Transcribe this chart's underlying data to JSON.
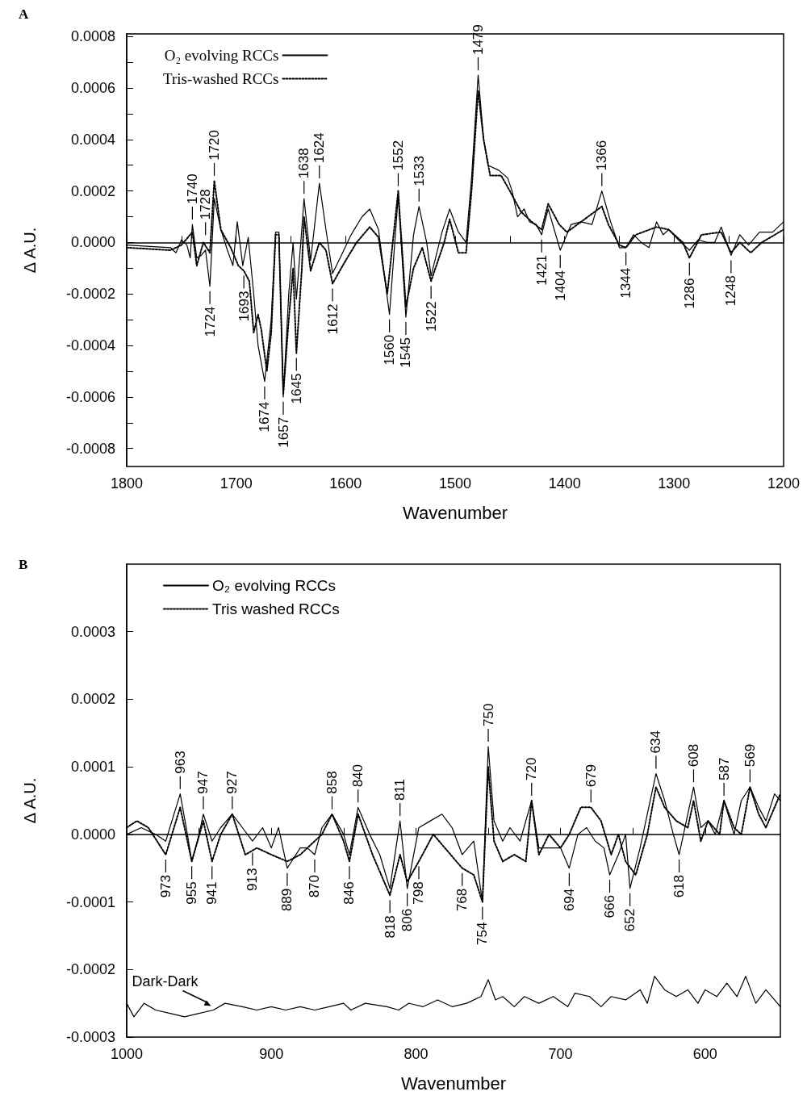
{
  "chart_data": [
    {
      "type": "line",
      "title": "A",
      "xlabel": "Wavenumber",
      "ylabel": "Δ A.U.",
      "legend": "top left",
      "xlim": [
        1800,
        1200
      ],
      "xticks": [
        1800,
        {
          "value": 1750,
          "label": null
        },
        1700,
        {
          "value": 1650,
          "label": null
        },
        1600,
        {
          "value": 1550,
          "label": null
        },
        1500,
        {
          "value": 1450,
          "label": null
        },
        1400,
        {
          "value": 1350,
          "label": null
        },
        1300,
        {
          "value": 1250,
          "label": null
        },
        1200
      ],
      "ylim": [
        -0.00087,
        0.00081
      ],
      "yticks": [
        -0.0008,
        {
          "value": -0.0007,
          "label": null
        },
        -0.0006,
        {
          "value": -0.0005,
          "label": null
        },
        -0.0004,
        {
          "value": -0.0003,
          "label": null
        },
        -0.0002,
        {
          "value": -0.0001,
          "label": null
        },
        {
          "value": 0,
          "label": "0.0000"
        },
        {
          "value": 0.0001,
          "label": null
        },
        0.0002,
        {
          "value": 0.0003,
          "label": null
        },
        0.0004,
        {
          "value": 0.0005,
          "label": null
        },
        0.0006,
        {
          "value": 0.0007,
          "label": null
        },
        0.0008
      ],
      "series": [
        {
          "name": "O₂ evolving RCCs",
          "color": "#000000",
          "line_style": "solid",
          "x": [
            1800,
            1760,
            1755,
            1750,
            1745,
            1742,
            1740,
            1736,
            1732,
            1728,
            1724,
            1720,
            1714,
            1708,
            1703,
            1699,
            1694,
            1689,
            1684,
            1680,
            1674,
            1668,
            1664,
            1661,
            1657,
            1652,
            1648,
            1645,
            1641,
            1638,
            1632,
            1624,
            1618,
            1612,
            1605,
            1595,
            1585,
            1578,
            1570,
            1560,
            1552,
            1545,
            1538,
            1533,
            1526,
            1522,
            1512,
            1505,
            1497,
            1490,
            1485,
            1479,
            1474,
            1470,
            1460,
            1452,
            1448,
            1443,
            1437,
            1432,
            1426,
            1421,
            1415,
            1404,
            1394,
            1385,
            1375,
            1366,
            1358,
            1350,
            1344,
            1337,
            1330,
            1323,
            1316,
            1310,
            1305,
            1296,
            1286,
            1278,
            1270,
            1263,
            1257,
            1248,
            1240,
            1232,
            1222,
            1210,
            1200
          ],
          "values": [
            -1e-05,
            -2e-05,
            -4e-05,
            1e-05,
            -1e-05,
            -6e-05,
            7e-05,
            -6e-05,
            -5e-05,
            -3e-05,
            -0.00017,
            0.00017,
            5e-05,
            -3e-05,
            -9e-05,
            8e-05,
            -9e-05,
            2e-05,
            -0.0002,
            -0.0004,
            -0.00054,
            -0.0003,
            4e-05,
            4e-05,
            -0.0006,
            -0.0002,
            0,
            -0.00022,
            0,
            0.00017,
            -7e-05,
            0.00023,
            5e-05,
            -0.00012,
            -6e-05,
            3e-05,
            0.0001,
            0.00013,
            5e-05,
            -0.00028,
            0.00018,
            -0.00029,
            3e-05,
            0.00014,
            0,
            -0.00013,
            4e-05,
            0.00013,
            4e-05,
            0,
            0.00025,
            0.00065,
            0.0004,
            0.0003,
            0.00028,
            0.00025,
            0.0002,
            0.0001,
            0.00013,
            8e-05,
            7e-05,
            3e-05,
            0.00013,
            -3e-05,
            7e-05,
            8e-05,
            7e-05,
            0.0002,
            8e-05,
            -2e-05,
            -2e-05,
            3e-05,
            0,
            -2e-05,
            8e-05,
            3e-05,
            5e-05,
            1e-05,
            -3e-05,
            1e-05,
            0,
            0,
            6e-05,
            -5e-05,
            3e-05,
            -1e-05,
            4e-05,
            4e-05,
            8e-05
          ]
        },
        {
          "name": "Tris-washed RCCs",
          "color": "#000000",
          "line_style": "dotted",
          "x": [
            1800,
            1760,
            1750,
            1740,
            1736,
            1730,
            1724,
            1720,
            1714,
            1705,
            1698,
            1693,
            1688,
            1684,
            1680,
            1677,
            1672,
            1668,
            1664,
            1661,
            1657,
            1652,
            1648,
            1645,
            1640,
            1638,
            1632,
            1624,
            1618,
            1612,
            1600,
            1590,
            1578,
            1570,
            1562,
            1552,
            1545,
            1538,
            1530,
            1522,
            1510,
            1505,
            1497,
            1490,
            1485,
            1479,
            1474,
            1468,
            1458,
            1450,
            1440,
            1430,
            1421,
            1415,
            1405,
            1398,
            1385,
            1366,
            1360,
            1350,
            1344,
            1335,
            1316,
            1305,
            1292,
            1286,
            1275,
            1257,
            1248,
            1240,
            1230,
            1220,
            1200
          ],
          "values": [
            -2e-05,
            -3e-05,
            -1e-05,
            4e-05,
            -9e-05,
            0,
            -4e-05,
            0.00024,
            5e-05,
            -2e-05,
            -9e-05,
            -0.00011,
            -0.00015,
            -0.00035,
            -0.00028,
            -0.00034,
            -0.0005,
            -0.00035,
            3e-05,
            3e-05,
            -0.00059,
            -0.0003,
            -0.0001,
            -0.00043,
            -0.0001,
            0.0001,
            -0.00011,
            0,
            -3e-05,
            -0.00016,
            -7e-05,
            0,
            6e-05,
            2e-05,
            -0.0002,
            0.0002,
            -0.00025,
            -0.0001,
            -2e-05,
            -0.00015,
            0,
            9e-05,
            -4e-05,
            -4e-05,
            0.0002,
            0.00059,
            0.0004,
            0.00026,
            0.00026,
            0.0002,
            0.00012,
            8e-05,
            5e-05,
            0.00015,
            7e-05,
            4e-05,
            8e-05,
            0.00014,
            7e-05,
            -1e-05,
            -2e-05,
            3e-05,
            6e-05,
            5e-05,
            0,
            -6e-05,
            3e-05,
            4e-05,
            -4e-05,
            0,
            -4e-05,
            0,
            5e-05
          ]
        }
      ],
      "annotations": [
        {
          "text": "1740",
          "x": 1740,
          "y": 7e-05
        },
        {
          "text": "1728",
          "x": 1728,
          "y": 1e-05
        },
        {
          "text": "1720",
          "x": 1720,
          "y": 0.00024
        },
        {
          "text": "1724",
          "x": 1724,
          "y": -0.00017
        },
        {
          "text": "1693",
          "x": 1693,
          "y": -0.00011
        },
        {
          "text": "1674",
          "x": 1674,
          "y": -0.00054
        },
        {
          "text": "1657",
          "x": 1657,
          "y": -0.0006
        },
        {
          "text": "1645",
          "x": 1645,
          "y": -0.00043
        },
        {
          "text": "1638",
          "x": 1638,
          "y": 0.00017
        },
        {
          "text": "1624",
          "x": 1624,
          "y": 0.00023
        },
        {
          "text": "1612",
          "x": 1612,
          "y": -0.00016
        },
        {
          "text": "1560",
          "x": 1560,
          "y": -0.00028
        },
        {
          "text": "1552",
          "x": 1552,
          "y": 0.0002
        },
        {
          "text": "1545",
          "x": 1545,
          "y": -0.00029
        },
        {
          "text": "1533",
          "x": 1533,
          "y": 0.00014
        },
        {
          "text": "1522",
          "x": 1522,
          "y": -0.00015
        },
        {
          "text": "1479",
          "x": 1479,
          "y": 0.00065
        },
        {
          "text": "1421",
          "x": 1421,
          "y": 3e-05
        },
        {
          "text": "1404",
          "x": 1404,
          "y": -3e-05
        },
        {
          "text": "1366",
          "x": 1366,
          "y": 0.0002
        },
        {
          "text": "1344",
          "x": 1344,
          "y": -2e-05
        },
        {
          "text": "1286",
          "x": 1286,
          "y": -6e-05
        },
        {
          "text": "1248",
          "x": 1248,
          "y": -5e-05
        }
      ]
    },
    {
      "type": "line",
      "title": "B",
      "xlabel": "Wavenumber",
      "ylabel": "Δ A.U.",
      "legend": "top left",
      "xlim": [
        1000,
        548
      ],
      "xticks": [
        1000,
        {
          "value": 950,
          "label": null
        },
        900,
        {
          "value": 850,
          "label": null
        },
        800,
        {
          "value": 750,
          "label": null
        },
        700,
        {
          "value": 650,
          "label": null
        },
        600
      ],
      "ylim": [
        -0.0003,
        0.0004
      ],
      "yticks": [
        -0.0003,
        -0.0002,
        -0.0001,
        {
          "value": 0,
          "label": "0.0000"
        },
        0.0001,
        0.0002,
        0.0003
      ],
      "series": [
        {
          "name": "O₂ evolving RCCs",
          "color": "#000000",
          "line_style": "solid",
          "x": [
            1000,
            990,
            980,
            973,
            963,
            958,
            955,
            950,
            947,
            941,
            935,
            927,
            920,
            913,
            906,
            900,
            895,
            889,
            880,
            875,
            870,
            865,
            858,
            850,
            846,
            840,
            832,
            825,
            818,
            811,
            806,
            798,
            790,
            782,
            775,
            768,
            760,
            754,
            750,
            746,
            740,
            735,
            728,
            720,
            715,
            708,
            700,
            694,
            688,
            682,
            676,
            670,
            666,
            660,
            655,
            652,
            645,
            640,
            634,
            628,
            622,
            618,
            612,
            608,
            603,
            598,
            593,
            587,
            580,
            575,
            569,
            563,
            558,
            552,
            548
          ],
          "values": [
            0,
            1e-05,
            0,
            -1e-05,
            6e-05,
            0,
            -4e-05,
            0,
            3e-05,
            -1e-05,
            1e-05,
            3e-05,
            1e-05,
            -1e-05,
            1e-05,
            -2e-05,
            1e-05,
            -5e-05,
            -2e-05,
            -2e-05,
            -3e-05,
            1e-05,
            3e-05,
            0,
            -3e-05,
            4e-05,
            0,
            -3e-05,
            -8e-05,
            2e-05,
            -8e-05,
            1e-05,
            2e-05,
            3e-05,
            1e-05,
            -3e-05,
            -1e-05,
            -0.0001,
            0.00013,
            2e-05,
            -1e-05,
            1e-05,
            -1e-05,
            5e-05,
            -2e-05,
            -2e-05,
            -2e-05,
            -5e-05,
            0,
            1e-05,
            -1e-05,
            -2e-05,
            -6e-05,
            -3e-05,
            0,
            -8e-05,
            -2e-05,
            3e-05,
            9e-05,
            5e-05,
            0,
            -3e-05,
            3e-05,
            7e-05,
            1e-05,
            2e-05,
            0,
            5e-05,
            0,
            5e-05,
            7e-05,
            4e-05,
            2e-05,
            6e-05,
            5e-05
          ]
        },
        {
          "name": "Tris washed RCCs",
          "color": "#000000",
          "line_style": "dotted",
          "x": [
            1000,
            993,
            985,
            973,
            963,
            958,
            955,
            947,
            941,
            935,
            927,
            918,
            910,
            900,
            889,
            880,
            870,
            865,
            858,
            850,
            846,
            840,
            830,
            818,
            811,
            806,
            798,
            788,
            780,
            768,
            760,
            754,
            750,
            746,
            740,
            732,
            724,
            720,
            715,
            708,
            700,
            694,
            686,
            679,
            672,
            665,
            660,
            655,
            648,
            640,
            634,
            628,
            620,
            612,
            608,
            603,
            598,
            590,
            587,
            580,
            575,
            569,
            563,
            558,
            552,
            548
          ],
          "values": [
            1e-05,
            2e-05,
            1e-05,
            -3e-05,
            4e-05,
            -1e-05,
            -4e-05,
            2e-05,
            -4e-05,
            0,
            3e-05,
            -3e-05,
            -2e-05,
            -3e-05,
            -4e-05,
            -3e-05,
            -1e-05,
            0,
            3e-05,
            -1e-05,
            -4e-05,
            3e-05,
            -3e-05,
            -9e-05,
            -3e-05,
            -7e-05,
            -4e-05,
            0,
            -2e-05,
            -5e-05,
            -6e-05,
            -0.0001,
            0.0001,
            -1e-05,
            -4e-05,
            -3e-05,
            -4e-05,
            5e-05,
            -3e-05,
            0,
            -2e-05,
            0,
            4e-05,
            4e-05,
            2e-05,
            -3e-05,
            0,
            -4e-05,
            -6e-05,
            0,
            7e-05,
            4e-05,
            2e-05,
            1e-05,
            5e-05,
            -1e-05,
            2e-05,
            0,
            5e-05,
            1e-05,
            0,
            7e-05,
            3e-05,
            1e-05,
            4e-05,
            6e-05
          ]
        },
        {
          "color": "#000000",
          "line_style": "solid",
          "x": [
            1000,
            995,
            988,
            980,
            970,
            960,
            950,
            940,
            932,
            920,
            910,
            900,
            890,
            880,
            870,
            860,
            850,
            845,
            835,
            820,
            812,
            805,
            795,
            785,
            775,
            765,
            755,
            750,
            745,
            740,
            732,
            725,
            715,
            705,
            695,
            690,
            680,
            672,
            665,
            655,
            645,
            640,
            635,
            628,
            620,
            612,
            605,
            600,
            592,
            585,
            578,
            572,
            565,
            558,
            550,
            548
          ],
          "values": [
            -0.00025,
            -0.00027,
            -0.00025,
            -0.00026,
            -0.000265,
            -0.00027,
            -0.000265,
            -0.00026,
            -0.00025,
            -0.000255,
            -0.00026,
            -0.000255,
            -0.00026,
            -0.000255,
            -0.00026,
            -0.000255,
            -0.00025,
            -0.00026,
            -0.00025,
            -0.000255,
            -0.00026,
            -0.00025,
            -0.000255,
            -0.000245,
            -0.000255,
            -0.00025,
            -0.00024,
            -0.000215,
            -0.000245,
            -0.00024,
            -0.000255,
            -0.00024,
            -0.00025,
            -0.00024,
            -0.000255,
            -0.000235,
            -0.00024,
            -0.000255,
            -0.00024,
            -0.000245,
            -0.00023,
            -0.00025,
            -0.00021,
            -0.00023,
            -0.00024,
            -0.00023,
            -0.00025,
            -0.00023,
            -0.00024,
            -0.00022,
            -0.00024,
            -0.00021,
            -0.00025,
            -0.00023,
            -0.00025,
            -0.000255
          ]
        }
      ],
      "annotations": [
        {
          "text": "963",
          "x": 963,
          "y": 6e-05
        },
        {
          "text": "947",
          "x": 947,
          "y": 3e-05
        },
        {
          "text": "927",
          "x": 927,
          "y": 3e-05
        },
        {
          "text": "858",
          "x": 858,
          "y": 3e-05
        },
        {
          "text": "840",
          "x": 840,
          "y": 4e-05
        },
        {
          "text": "811",
          "x": 811,
          "y": 2e-05
        },
        {
          "text": "750",
          "x": 750,
          "y": 0.00013
        },
        {
          "text": "720",
          "x": 720,
          "y": 5e-05
        },
        {
          "text": "679",
          "x": 679,
          "y": 4e-05
        },
        {
          "text": "634",
          "x": 634,
          "y": 9e-05
        },
        {
          "text": "608",
          "x": 608,
          "y": 7e-05
        },
        {
          "text": "587",
          "x": 587,
          "y": 5e-05
        },
        {
          "text": "569",
          "x": 569,
          "y": 7e-05
        },
        {
          "text": "973",
          "x": 973,
          "y": -3e-05
        },
        {
          "text": "955",
          "x": 955,
          "y": -4e-05
        },
        {
          "text": "941",
          "x": 941,
          "y": -4e-05
        },
        {
          "text": "913",
          "x": 913,
          "y": -2e-05
        },
        {
          "text": "889",
          "x": 889,
          "y": -5e-05
        },
        {
          "text": "870",
          "x": 870,
          "y": -3e-05
        },
        {
          "text": "846",
          "x": 846,
          "y": -4e-05
        },
        {
          "text": "818",
          "x": 818,
          "y": -9e-05
        },
        {
          "text": "806",
          "x": 806,
          "y": -8e-05
        },
        {
          "text": "798",
          "x": 798,
          "y": -4e-05
        },
        {
          "text": "768",
          "x": 768,
          "y": -5e-05
        },
        {
          "text": "754",
          "x": 754,
          "y": -0.0001
        },
        {
          "text": "694",
          "x": 694,
          "y": -5e-05
        },
        {
          "text": "666",
          "x": 666,
          "y": -6e-05
        },
        {
          "text": "652",
          "x": 652,
          "y": -8e-05
        },
        {
          "text": "618",
          "x": 618,
          "y": -3e-05
        },
        {
          "text": "Dark-Dark",
          "x": 940,
          "y": -0.00026
        }
      ]
    }
  ]
}
